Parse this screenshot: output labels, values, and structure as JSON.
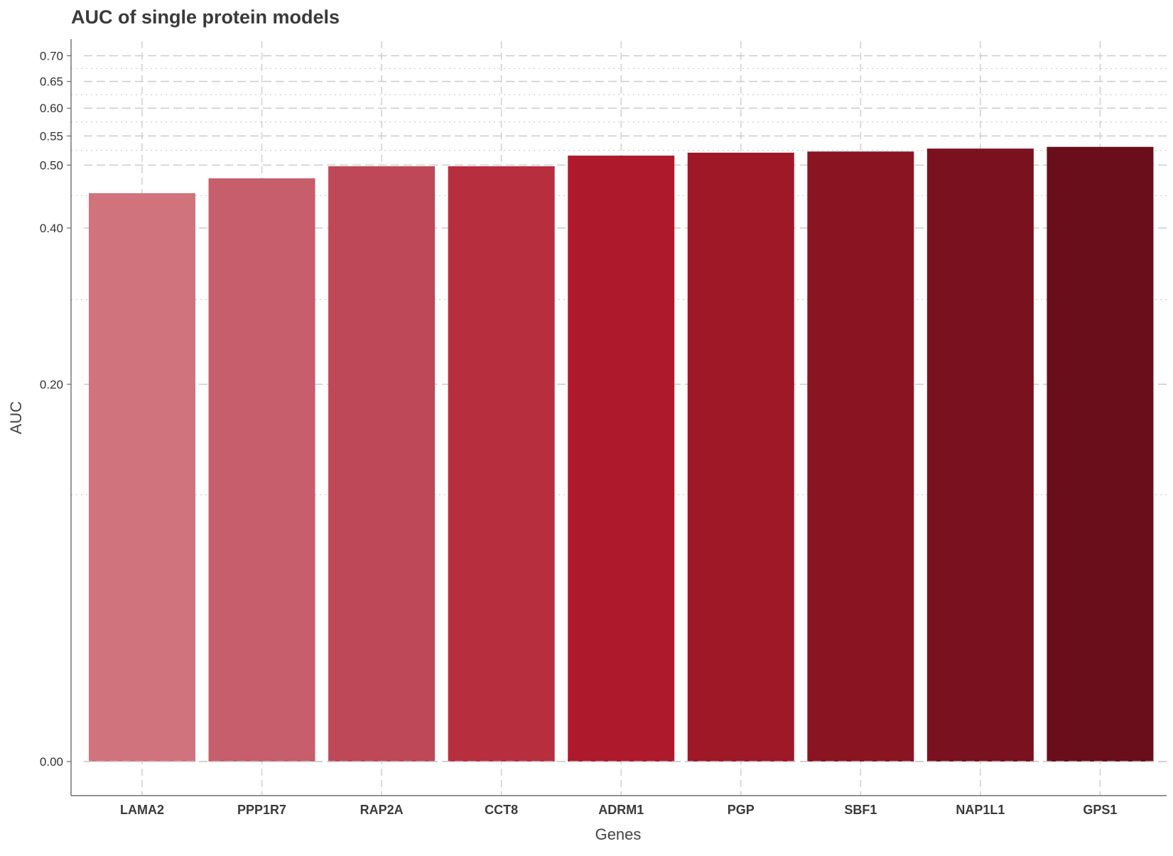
{
  "chart_data": {
    "type": "bar",
    "title": "AUC of single protein models",
    "xlabel": "Genes",
    "ylabel": "AUC",
    "scale": "sqrt",
    "ylim": [
      0,
      0.735
    ],
    "yticks": [
      "0.00",
      "0.20",
      "0.40",
      "0.50",
      "0.55",
      "0.60",
      "0.65",
      "0.70"
    ],
    "ytick_values": [
      0,
      0.2,
      0.4,
      0.5,
      0.55,
      0.6,
      0.65,
      0.7
    ],
    "minor_ticks": [
      0.1,
      0.3,
      0.45,
      0.525,
      0.575,
      0.625,
      0.675
    ],
    "grid": true,
    "categories": [
      "LAMA2",
      "PPP1R7",
      "RAP2A",
      "CCT8",
      "ADRM1",
      "PGP",
      "SBF1",
      "NAP1L1",
      "GPS1"
    ],
    "values": [
      0.454,
      0.478,
      0.498,
      0.498,
      0.516,
      0.521,
      0.523,
      0.528,
      0.531
    ],
    "colors": [
      "#d1737d",
      "#c65e6b",
      "#be4857",
      "#b72f3f",
      "#ae1a2c",
      "#9e1827",
      "#8b1423",
      "#7a111f",
      "#6b0e1b"
    ]
  }
}
